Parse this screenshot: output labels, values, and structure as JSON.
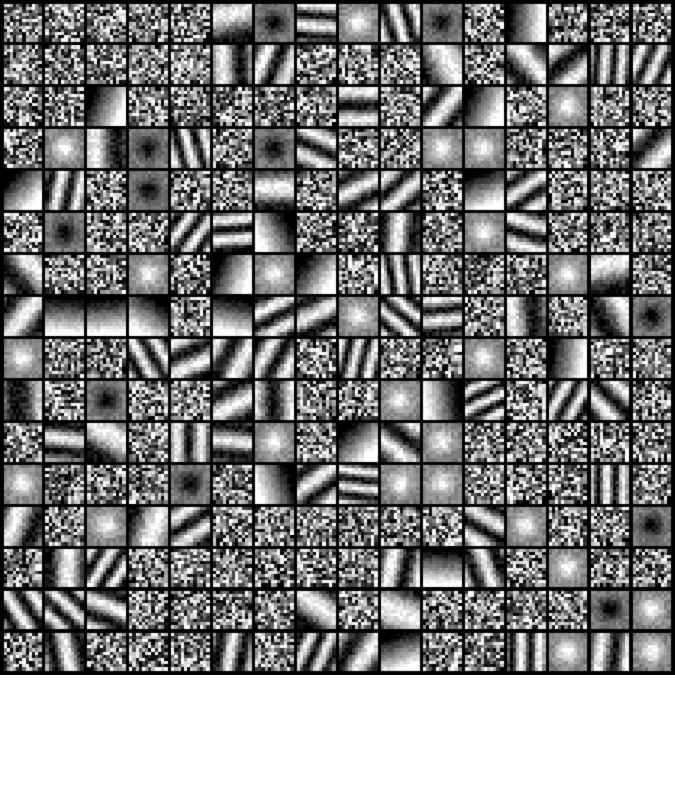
{
  "image": {
    "grid_rows": 16,
    "grid_cols": 16,
    "patch_pixels": 12,
    "background": "#000000",
    "page_background": "#ffffff"
  }
}
